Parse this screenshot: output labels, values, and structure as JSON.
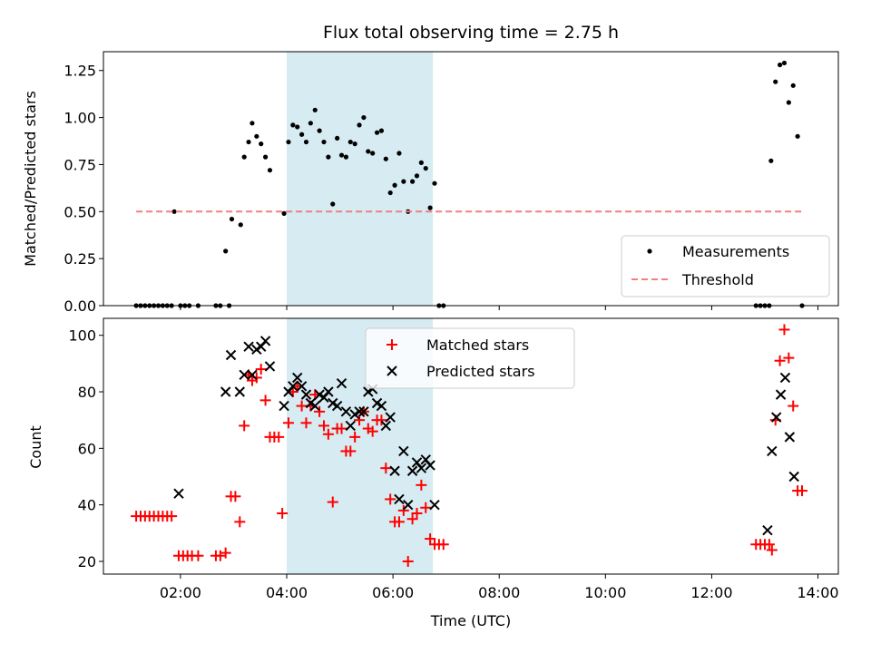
{
  "figure": {
    "title": "Flux total observing time = 2.75 h",
    "xlabel": "Time (UTC)"
  },
  "chart_data": [
    {
      "type": "scatter",
      "panel": "top",
      "ylabel": "Matched/Predicted stars",
      "xlim": [
        "00:33",
        "14:23"
      ],
      "ylim": [
        0,
        1.35
      ],
      "x_ticks": [
        "02:00",
        "04:00",
        "06:00",
        "08:00",
        "10:00",
        "12:00",
        "14:00"
      ],
      "y_ticks": [
        "0.00",
        "0.25",
        "0.50",
        "0.75",
        "1.00",
        "1.25"
      ],
      "shaded_span": {
        "x": [
          "04:00",
          "06:45"
        ],
        "color": "#add8e6"
      },
      "legend": {
        "location": "lower right",
        "entries": [
          "Measurements",
          "Threshold"
        ]
      },
      "series": [
        {
          "name": "Measurements",
          "marker": "dot",
          "color": "#000000",
          "points": [
            [
              "01:10",
              0
            ],
            [
              "01:15",
              0
            ],
            [
              "01:20",
              0
            ],
            [
              "01:25",
              0
            ],
            [
              "01:30",
              0
            ],
            [
              "01:35",
              0
            ],
            [
              "01:40",
              0
            ],
            [
              "01:45",
              0
            ],
            [
              "01:50",
              0
            ],
            [
              "01:53",
              0.5
            ],
            [
              "02:00",
              0
            ],
            [
              "02:05",
              0
            ],
            [
              "02:10",
              0
            ],
            [
              "02:20",
              0
            ],
            [
              "02:40",
              0
            ],
            [
              "02:45",
              0
            ],
            [
              "02:55",
              0
            ],
            [
              "02:51",
              0.29
            ],
            [
              "02:58",
              0.46
            ],
            [
              "03:08",
              0.43
            ],
            [
              "03:12",
              0.79
            ],
            [
              "03:17",
              0.87
            ],
            [
              "03:21",
              0.97
            ],
            [
              "03:26",
              0.9
            ],
            [
              "03:31",
              0.86
            ],
            [
              "03:36",
              0.79
            ],
            [
              "03:41",
              0.72
            ],
            [
              "03:57",
              0.49
            ],
            [
              "04:02",
              0.87
            ],
            [
              "04:07",
              0.96
            ],
            [
              "04:12",
              0.95
            ],
            [
              "04:17",
              0.91
            ],
            [
              "04:22",
              0.87
            ],
            [
              "04:27",
              0.97
            ],
            [
              "04:32",
              1.04
            ],
            [
              "04:37",
              0.93
            ],
            [
              "04:42",
              0.87
            ],
            [
              "04:47",
              0.79
            ],
            [
              "04:52",
              0.54
            ],
            [
              "04:57",
              0.89
            ],
            [
              "05:02",
              0.8
            ],
            [
              "05:07",
              0.79
            ],
            [
              "05:12",
              0.87
            ],
            [
              "05:17",
              0.86
            ],
            [
              "05:22",
              0.96
            ],
            [
              "05:27",
              1.0
            ],
            [
              "05:32",
              0.82
            ],
            [
              "05:37",
              0.81
            ],
            [
              "05:42",
              0.92
            ],
            [
              "05:47",
              0.93
            ],
            [
              "05:52",
              0.78
            ],
            [
              "05:57",
              0.6
            ],
            [
              "06:02",
              0.64
            ],
            [
              "06:07",
              0.81
            ],
            [
              "06:12",
              0.66
            ],
            [
              "06:17",
              0.5
            ],
            [
              "06:22",
              0.66
            ],
            [
              "06:27",
              0.69
            ],
            [
              "06:32",
              0.76
            ],
            [
              "06:37",
              0.73
            ],
            [
              "06:42",
              0.52
            ],
            [
              "06:47",
              0.65
            ],
            [
              "06:52",
              0
            ],
            [
              "06:57",
              0
            ],
            [
              "12:50",
              0
            ],
            [
              "12:55",
              0
            ],
            [
              "13:00",
              0
            ],
            [
              "13:05",
              0
            ],
            [
              "13:07",
              0.77
            ],
            [
              "13:12",
              1.19
            ],
            [
              "13:17",
              1.28
            ],
            [
              "13:22",
              1.29
            ],
            [
              "13:27",
              1.08
            ],
            [
              "13:32",
              1.17
            ],
            [
              "13:37",
              0.9
            ],
            [
              "13:42",
              0
            ]
          ]
        },
        {
          "name": "Threshold",
          "style": "dashed",
          "color": "#f08080",
          "points": [
            [
              "01:10",
              0.5
            ],
            [
              "13:42",
              0.5
            ]
          ]
        }
      ]
    },
    {
      "type": "scatter",
      "panel": "bottom",
      "ylabel": "Count",
      "xlim": [
        "00:33",
        "14:23"
      ],
      "ylim": [
        15.5,
        106
      ],
      "x_ticks": [
        "02:00",
        "04:00",
        "06:00",
        "08:00",
        "10:00",
        "12:00",
        "14:00"
      ],
      "y_ticks": [
        "20",
        "40",
        "60",
        "80",
        "100"
      ],
      "shaded_span": {
        "x": [
          "04:00",
          "06:45"
        ],
        "color": "#add8e6"
      },
      "legend": {
        "location": "upper center",
        "entries": [
          "Matched stars",
          "Predicted stars"
        ]
      },
      "series": [
        {
          "name": "Matched stars",
          "marker": "plus",
          "color": "#ff0000",
          "points": [
            [
              "01:10",
              36
            ],
            [
              "01:15",
              36
            ],
            [
              "01:20",
              36
            ],
            [
              "01:25",
              36
            ],
            [
              "01:30",
              36
            ],
            [
              "01:35",
              36
            ],
            [
              "01:40",
              36
            ],
            [
              "01:45",
              36
            ],
            [
              "01:50",
              36
            ],
            [
              "01:58",
              22
            ],
            [
              "02:03",
              22
            ],
            [
              "02:08",
              22
            ],
            [
              "02:13",
              22
            ],
            [
              "02:20",
              22
            ],
            [
              "02:40",
              22
            ],
            [
              "02:45",
              22
            ],
            [
              "02:51",
              23
            ],
            [
              "02:57",
              43
            ],
            [
              "03:02",
              43
            ],
            [
              "03:07",
              34
            ],
            [
              "03:12",
              68
            ],
            [
              "03:17",
              86
            ],
            [
              "03:21",
              84
            ],
            [
              "03:26",
              85
            ],
            [
              "03:31",
              88
            ],
            [
              "03:36",
              77
            ],
            [
              "03:41",
              64
            ],
            [
              "03:46",
              64
            ],
            [
              "03:51",
              64
            ],
            [
              "03:55",
              37
            ],
            [
              "04:02",
              69
            ],
            [
              "04:07",
              80
            ],
            [
              "04:12",
              82
            ],
            [
              "04:17",
              75
            ],
            [
              "04:22",
              69
            ],
            [
              "04:27",
              75
            ],
            [
              "04:32",
              79
            ],
            [
              "04:37",
              73
            ],
            [
              "04:42",
              68
            ],
            [
              "04:47",
              65
            ],
            [
              "04:52",
              41
            ],
            [
              "04:57",
              67
            ],
            [
              "05:02",
              67
            ],
            [
              "05:07",
              59
            ],
            [
              "05:12",
              59
            ],
            [
              "05:17",
              64
            ],
            [
              "05:22",
              70
            ],
            [
              "05:27",
              73
            ],
            [
              "05:32",
              67
            ],
            [
              "05:37",
              66
            ],
            [
              "05:42",
              70
            ],
            [
              "05:47",
              70
            ],
            [
              "05:52",
              53
            ],
            [
              "05:57",
              42
            ],
            [
              "06:02",
              34
            ],
            [
              "06:07",
              34
            ],
            [
              "06:12",
              38
            ],
            [
              "06:17",
              20
            ],
            [
              "06:22",
              35
            ],
            [
              "06:27",
              37
            ],
            [
              "06:32",
              47
            ],
            [
              "06:37",
              39
            ],
            [
              "06:42",
              28
            ],
            [
              "06:47",
              26
            ],
            [
              "06:52",
              26
            ],
            [
              "06:57",
              26
            ],
            [
              "12:50",
              26
            ],
            [
              "12:55",
              26
            ],
            [
              "13:00",
              26
            ],
            [
              "13:05",
              26
            ],
            [
              "13:08",
              24
            ],
            [
              "13:12",
              70
            ],
            [
              "13:17",
              91
            ],
            [
              "13:22",
              102
            ],
            [
              "13:27",
              92
            ],
            [
              "13:32",
              75
            ],
            [
              "13:37",
              45
            ],
            [
              "13:42",
              45
            ]
          ]
        },
        {
          "name": "Predicted stars",
          "marker": "x",
          "color": "#000000",
          "points": [
            [
              "01:58",
              44
            ],
            [
              "02:51",
              80
            ],
            [
              "02:57",
              93
            ],
            [
              "03:07",
              80
            ],
            [
              "03:12",
              86
            ],
            [
              "03:17",
              96
            ],
            [
              "03:21",
              86
            ],
            [
              "03:26",
              95
            ],
            [
              "03:31",
              96
            ],
            [
              "03:36",
              98
            ],
            [
              "03:41",
              89
            ],
            [
              "03:57",
              75
            ],
            [
              "04:02",
              80
            ],
            [
              "04:07",
              82
            ],
            [
              "04:12",
              85
            ],
            [
              "04:17",
              82
            ],
            [
              "04:22",
              79
            ],
            [
              "04:27",
              76
            ],
            [
              "04:32",
              75
            ],
            [
              "04:37",
              79
            ],
            [
              "04:42",
              78
            ],
            [
              "04:47",
              80
            ],
            [
              "04:52",
              76
            ],
            [
              "04:57",
              75
            ],
            [
              "05:02",
              83
            ],
            [
              "05:07",
              73
            ],
            [
              "05:12",
              68
            ],
            [
              "05:17",
              72
            ],
            [
              "05:22",
              73
            ],
            [
              "05:27",
              73
            ],
            [
              "05:32",
              80
            ],
            [
              "05:37",
              81
            ],
            [
              "05:42",
              76
            ],
            [
              "05:47",
              75
            ],
            [
              "05:52",
              68
            ],
            [
              "05:57",
              71
            ],
            [
              "06:02",
              52
            ],
            [
              "06:07",
              42
            ],
            [
              "06:12",
              59
            ],
            [
              "06:17",
              40
            ],
            [
              "06:22",
              52
            ],
            [
              "06:27",
              55
            ],
            [
              "06:32",
              53
            ],
            [
              "06:37",
              56
            ],
            [
              "06:42",
              54
            ],
            [
              "06:47",
              40
            ],
            [
              "13:03",
              31
            ],
            [
              "13:08",
              59
            ],
            [
              "13:13",
              71
            ],
            [
              "13:18",
              79
            ],
            [
              "13:23",
              85
            ],
            [
              "13:28",
              64
            ],
            [
              "13:33",
              50
            ]
          ]
        }
      ]
    }
  ]
}
